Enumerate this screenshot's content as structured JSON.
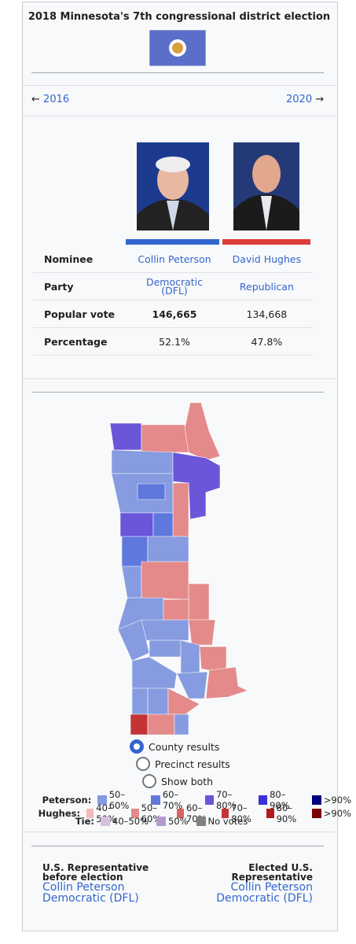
{
  "title": "2018 Minnesota's 7th congressional district election",
  "nav": {
    "previous_arrow": "←",
    "previous": "2016",
    "next": "2020",
    "next_arrow": "→"
  },
  "table": {
    "rows": [
      [
        "Nominee",
        "Collin Peterson",
        "David Hughes"
      ],
      [
        "Party",
        "Democratic (DFL)",
        "Republican"
      ],
      [
        "Popular vote",
        "146,665",
        "134,668"
      ],
      [
        "Percentage",
        "52.1%",
        "47.8%"
      ]
    ]
  },
  "map_options": [
    "County results",
    "Precinct results",
    "Show both"
  ],
  "legend": [
    {
      "label": "Peterson:",
      "items": [
        {
          "text": "50–60%",
          "color": "#869be0"
        },
        {
          "text": "60–70%",
          "color": "#5f78de"
        },
        {
          "text": "70–80%",
          "color": "#6b55d9"
        },
        {
          "text": "80–90%",
          "color": "#3b30d6"
        },
        {
          "text": ">90%",
          "color": "#000080"
        }
      ]
    },
    {
      "label": "Hughes:",
      "items": [
        {
          "text": "40–50%",
          "color": "#f5b8b8"
        },
        {
          "text": "50–60%",
          "color": "#e48a8a"
        },
        {
          "text": "60–70%",
          "color": "#d76262"
        },
        {
          "text": "70–80%",
          "color": "#c43434"
        },
        {
          "text": "80–90%",
          "color": "#b01c1c"
        },
        {
          "text": ">90%",
          "color": "#7a0000"
        }
      ]
    },
    {
      "label": "Tie:",
      "items": [
        {
          "text": "40–50%",
          "color": "#d9bfe2"
        },
        {
          "text": "50%",
          "color": "#b49ad0"
        },
        {
          "text": "No votes",
          "color": "#808080"
        }
      ]
    }
  ],
  "footer": {
    "before": {
      "label": "U.S. Representative before election",
      "name": "Collin Peterson",
      "party": "Democratic (DFL)"
    },
    "after": {
      "label": "Elected U.S. Representative",
      "name": "Collin Peterson",
      "party": "Democratic (DFL)"
    }
  }
}
